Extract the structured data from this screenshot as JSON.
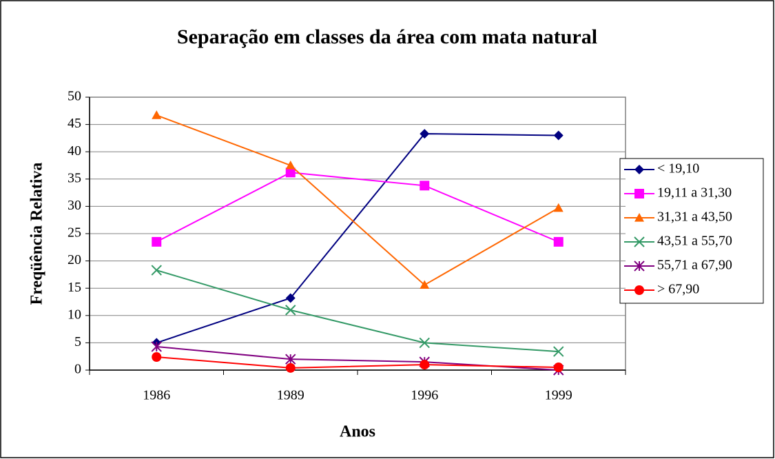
{
  "chart_data": {
    "type": "line",
    "title": "Separação em classes da área com mata natural",
    "x_label": "Anos",
    "y_label": "Freqüência Relativa",
    "categories": [
      "1986",
      "1989",
      "1996",
      "1999"
    ],
    "ylim": [
      0,
      50
    ],
    "yticks": [
      0,
      5,
      10,
      15,
      20,
      25,
      30,
      35,
      40,
      45,
      50
    ],
    "grid": true,
    "legend": "right",
    "series": [
      {
        "name": "< 19,10",
        "color": "#000080",
        "marker": "diamond",
        "values": [
          5,
          13.2,
          43.3,
          43
        ]
      },
      {
        "name": "19,11 a 31,30",
        "color": "#ff00ff",
        "marker": "square",
        "values": [
          23.5,
          36.2,
          33.8,
          23.5
        ]
      },
      {
        "name": "31,31 a 43,50",
        "color": "#ff6600",
        "marker": "triangle",
        "values": [
          46.7,
          37.5,
          15.6,
          29.7
        ]
      },
      {
        "name": "43,51 a 55,70",
        "color": "#339966",
        "marker": "x",
        "values": [
          18.3,
          11,
          5,
          3.4
        ]
      },
      {
        "name": "55,71 a 67,90",
        "color": "#800080",
        "marker": "asterisk",
        "values": [
          4.3,
          2,
          1.5,
          0
        ]
      },
      {
        "name": "> 67,90",
        "color": "#ff0000",
        "marker": "circle",
        "values": [
          2.4,
          0.4,
          1,
          0.5
        ]
      }
    ]
  }
}
